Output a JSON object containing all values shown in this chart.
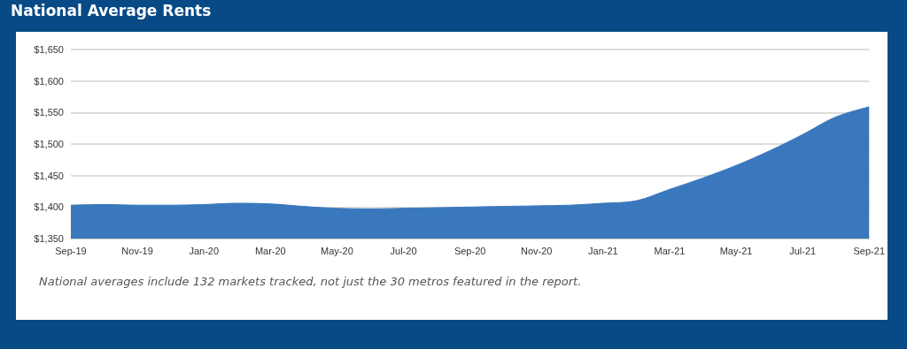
{
  "chart_data": {
    "type": "area",
    "title": "National Average Rents",
    "categories": [
      "Sep-19",
      null,
      "Nov-19",
      null,
      "Jan-20",
      null,
      "Mar-20",
      null,
      "May-20",
      null,
      "Jul-20",
      null,
      "Sep-20",
      null,
      "Nov-20",
      null,
      "Jan-21",
      null,
      "Mar-21",
      null,
      "May-21",
      null,
      "Jul-21",
      null,
      "Sep-21"
    ],
    "series": [
      {
        "color": "#3a78bd",
        "values": [
          1403,
          1404,
          1403,
          1403,
          1404,
          1406,
          1405,
          1401,
          1398,
          1397,
          1398,
          1399,
          1400,
          1401,
          1402,
          1403,
          1406,
          1410,
          1428,
          1446,
          1466,
          1489,
          1515,
          1543,
          1559
        ]
      }
    ],
    "ylim": [
      1350,
      1650
    ],
    "yticks": [
      {
        "value": 1350,
        "label": "$1,350"
      },
      {
        "value": 1400,
        "label": "$1,400"
      },
      {
        "value": 1450,
        "label": "$1,450"
      },
      {
        "value": 1500,
        "label": "$1,500"
      },
      {
        "value": 1550,
        "label": "$1,550"
      },
      {
        "value": 1600,
        "label": "$1,600"
      },
      {
        "value": 1650,
        "label": "$1,650"
      }
    ],
    "grid": "y",
    "annotations": [
      "National averages include 132 markets tracked, not just the 30 metros featured in the report."
    ]
  }
}
